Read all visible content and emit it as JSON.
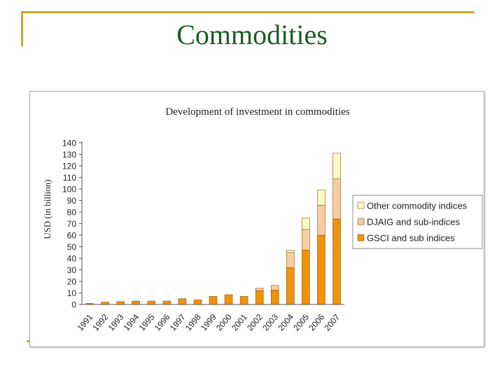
{
  "slide": {
    "title": "Commodities"
  },
  "colors": {
    "frame": "#c9a72a",
    "title_text": "#1b5e20",
    "gsci": "#f0920a",
    "djaig": "#f7cca2",
    "other": "#fdf9c7",
    "bar_stroke": "#8a5a16"
  },
  "chart_data": {
    "type": "bar",
    "stacked": true,
    "title": "Development of investment in commodities",
    "xlabel": "",
    "ylabel": "USD (in billion)",
    "ylim": [
      0,
      140
    ],
    "ytick_step": 10,
    "categories": [
      "1991",
      "1992",
      "1993",
      "1994",
      "1995",
      "1996",
      "1997",
      "1998",
      "1999",
      "2000",
      "2001",
      "2002",
      "2003",
      "2004",
      "2005",
      "2006",
      "2007"
    ],
    "series": [
      {
        "name": "GSCI and sub indices",
        "values": [
          1,
          2,
          2.5,
          3,
          3,
          3,
          5,
          4,
          7,
          8.5,
          7,
          12,
          12.5,
          32,
          47,
          60,
          74
        ]
      },
      {
        "name": "DJAIG and sub-indices",
        "values": [
          0,
          0,
          0,
          0,
          0,
          0,
          0,
          0,
          0,
          0,
          0,
          2,
          4,
          13,
          18,
          26,
          35
        ]
      },
      {
        "name": "Other commodity indices",
        "values": [
          0,
          0,
          0,
          0,
          0,
          0,
          0,
          0,
          0,
          0,
          0,
          0,
          0,
          2,
          10,
          13,
          22
        ]
      }
    ],
    "legend": {
      "position": "right",
      "order": [
        "Other commodity indices",
        "DJAIG and sub-indices",
        "GSCI and sub indices"
      ]
    },
    "grid": false
  }
}
